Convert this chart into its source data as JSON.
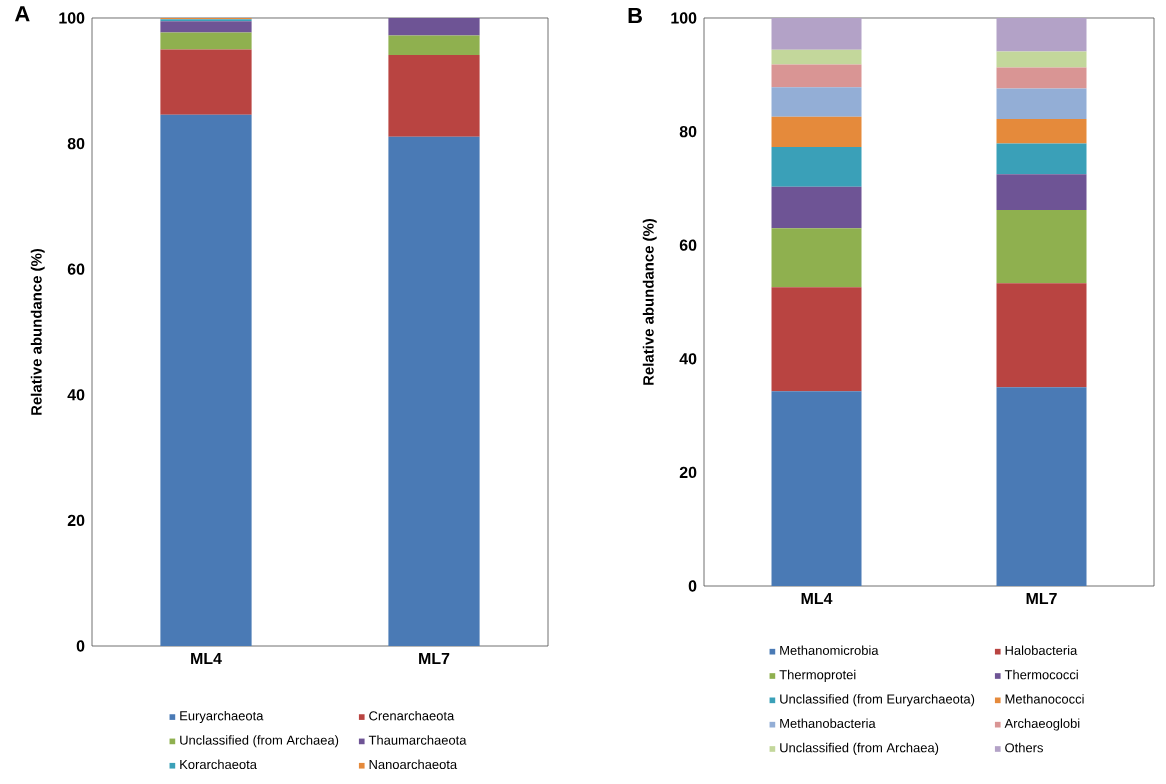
{
  "chart_data": [
    {
      "type": "bar",
      "stacked": true,
      "ylabel": "Relative abundance (%)",
      "annotations": [
        "A"
      ],
      "categories": [
        "ML4",
        "ML7"
      ],
      "ylim": [
        0,
        100
      ],
      "yticks": [
        0,
        20,
        40,
        60,
        80,
        100
      ],
      "legend": "bottom",
      "series": [
        {
          "name": "Euryarchaeota",
          "color": "#4a7ab5",
          "values": [
            84.6,
            81.1
          ]
        },
        {
          "name": "Crenarchaeota",
          "color": "#b94441",
          "values": [
            10.4,
            13.0
          ]
        },
        {
          "name": "Unclassified (from Archaea)",
          "color": "#8fb04f",
          "values": [
            2.7,
            3.1
          ]
        },
        {
          "name": "Thaumarchaeota",
          "color": "#6e5495",
          "values": [
            1.8,
            2.8
          ]
        },
        {
          "name": "Korarchaeota",
          "color": "#3aa0b8",
          "values": [
            0.3,
            0
          ]
        },
        {
          "name": "Nanoarchaeota",
          "color": "#e58a3b",
          "values": [
            0.2,
            0
          ]
        }
      ]
    },
    {
      "type": "bar",
      "stacked": true,
      "ylabel": "Relative abundance (%)",
      "annotations": [
        "B"
      ],
      "categories": [
        "ML4",
        "ML7"
      ],
      "ylim": [
        0,
        100
      ],
      "yticks": [
        0,
        20,
        40,
        60,
        80,
        100
      ],
      "legend": "bottom",
      "series": [
        {
          "name": "Methanomicrobia",
          "color": "#4a7ab5",
          "values": [
            34.3,
            35.0
          ]
        },
        {
          "name": "Halobacteria",
          "color": "#b94441",
          "values": [
            18.3,
            18.3
          ]
        },
        {
          "name": "Thermoprotei",
          "color": "#8fb04f",
          "values": [
            10.4,
            12.9
          ]
        },
        {
          "name": "Thermococci",
          "color": "#6e5495",
          "values": [
            7.3,
            6.3
          ]
        },
        {
          "name": "Unclassified (from Euryarchaeota)",
          "color": "#3aa0b8",
          "values": [
            7.0,
            5.4
          ]
        },
        {
          "name": "Methanococci",
          "color": "#e58a3b",
          "values": [
            5.3,
            4.3
          ]
        },
        {
          "name": "Methanobacteria",
          "color": "#93aed6",
          "values": [
            5.2,
            5.4
          ]
        },
        {
          "name": "Archaeoglobi",
          "color": "#d99594",
          "values": [
            4.0,
            3.7
          ]
        },
        {
          "name": "Unclassified (from Archaea)",
          "color": "#c3d79b",
          "values": [
            2.6,
            2.8
          ]
        },
        {
          "name": "Others",
          "color": "#b3a2c7",
          "values": [
            5.6,
            5.9
          ]
        }
      ]
    }
  ]
}
